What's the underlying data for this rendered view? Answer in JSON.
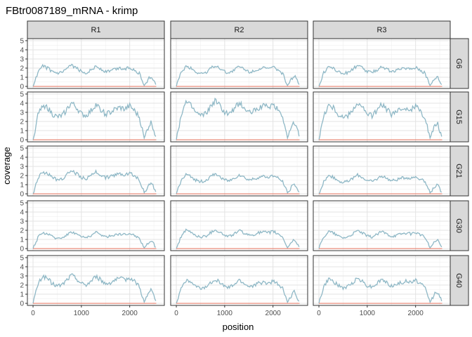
{
  "chart_data": {
    "type": "line",
    "title": "FBtr0087189_mRNA - krimp",
    "xlabel": "position",
    "ylabel": "coverage",
    "xlim": [
      0,
      2600
    ],
    "ylim": [
      0,
      5
    ],
    "x_ticks": [
      0,
      1000,
      2000
    ],
    "y_ticks": [
      0,
      1,
      2,
      3,
      4,
      5
    ],
    "column_facets": [
      "R1",
      "R2",
      "R3"
    ],
    "row_facets": [
      "G6",
      "G15",
      "G21",
      "G30",
      "G40"
    ],
    "grid": true,
    "series_colors": {
      "coverage": "#8fb8c6",
      "baseline": "#e8806e"
    },
    "coverage_profile": {
      "x": [
        0,
        100,
        200,
        300,
        400,
        500,
        600,
        700,
        800,
        900,
        1000,
        1100,
        1200,
        1300,
        1400,
        1500,
        1600,
        1700,
        1800,
        1900,
        2000,
        2100,
        2200,
        2300,
        2400,
        2450,
        2500,
        2550
      ],
      "y": [
        0,
        1.5,
        2.2,
        2.0,
        1.6,
        1.4,
        1.5,
        1.9,
        2.3,
        2.0,
        1.6,
        1.5,
        1.8,
        2.2,
        1.9,
        1.6,
        1.7,
        1.9,
        2.0,
        1.9,
        2.1,
        1.8,
        1.4,
        0.1,
        0.9,
        1.1,
        0.6,
        0.1
      ]
    },
    "panel_scale": [
      [
        1.0,
        1.0,
        1.0
      ],
      [
        1.75,
        1.85,
        1.75
      ],
      [
        1.1,
        0.95,
        0.9
      ],
      [
        0.8,
        0.9,
        0.85
      ],
      [
        1.35,
        1.15,
        1.2
      ]
    ],
    "baseline_value": 0
  }
}
